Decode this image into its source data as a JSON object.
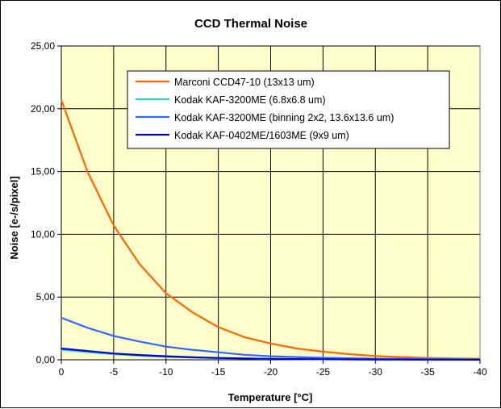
{
  "chart_data": {
    "type": "line",
    "title": "CCD Thermal Noise",
    "xlabel": "Temperature [°C]",
    "ylabel": "Noise [e-/s/pixel]",
    "xlim": [
      0,
      -40
    ],
    "ylim": [
      0,
      25
    ],
    "grid": true,
    "legend_position": "top-right",
    "x_ticks": [
      0,
      -5,
      -10,
      -15,
      -20,
      -25,
      -30,
      -35,
      -40
    ],
    "x_tick_labels": [
      "0",
      "-5",
      "-10",
      "-15",
      "-20",
      "-25",
      "-30",
      "-35",
      "-40"
    ],
    "y_ticks": [
      0,
      5,
      10,
      15,
      20,
      25
    ],
    "y_tick_labels": [
      "0,00",
      "5,00",
      "10,00",
      "15,00",
      "20,00",
      "25,00"
    ],
    "x": [
      0,
      -2.5,
      -5,
      -7.5,
      -10,
      -12.5,
      -15,
      -17.5,
      -20,
      -22.5,
      -25,
      -27.5,
      -30,
      -32.5,
      -35,
      -37.5,
      -40
    ],
    "series": [
      {
        "name": "Marconi CCD47-10 (13x13 um)",
        "color": "#ff6600",
        "values": [
          20.7,
          15.0,
          10.7,
          7.6,
          5.3,
          3.8,
          2.6,
          1.8,
          1.3,
          0.9,
          0.65,
          0.45,
          0.3,
          0.22,
          0.15,
          0.11,
          0.08
        ]
      },
      {
        "name": "Kodak KAF-3200ME (6.8x6.8 um)",
        "color": "#33cccc",
        "values": [
          0.8,
          0.62,
          0.45,
          0.33,
          0.24,
          0.18,
          0.13,
          0.1,
          0.07,
          0.05,
          0.04,
          0.03,
          0.02,
          0.015,
          0.01,
          0.008,
          0.005
        ]
      },
      {
        "name": "Kodak KAF-3200ME (binning 2x2, 13.6x13.6 um)",
        "color": "#3366ff",
        "values": [
          3.35,
          2.55,
          1.9,
          1.45,
          1.05,
          0.8,
          0.6,
          0.4,
          0.28,
          0.22,
          0.16,
          0.12,
          0.09,
          0.07,
          0.05,
          0.04,
          0.03
        ]
      },
      {
        "name": "Kodak KAF-0402ME/1603ME (9x9 um)",
        "color": "#0000cc",
        "values": [
          0.9,
          0.7,
          0.5,
          0.38,
          0.28,
          0.2,
          0.15,
          0.11,
          0.08,
          0.06,
          0.045,
          0.035,
          0.025,
          0.02,
          0.015,
          0.01,
          0.008
        ]
      }
    ]
  }
}
